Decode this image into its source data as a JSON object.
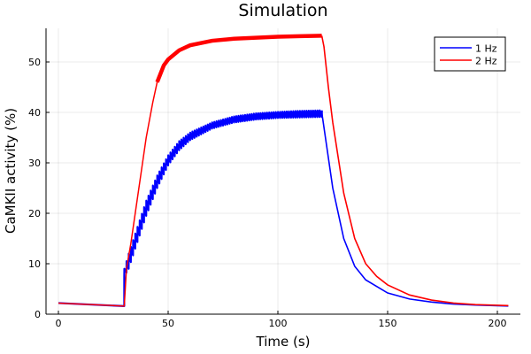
{
  "chart_data": {
    "type": "line",
    "title": "Simulation",
    "xlabel": "Time (s)",
    "ylabel": "CaMKII activity (%)",
    "xlim": [
      -6,
      210
    ],
    "ylim": [
      0,
      57
    ],
    "xticks": [
      0,
      50,
      100,
      150,
      200
    ],
    "yticks": [
      0,
      10,
      20,
      30,
      40,
      50
    ],
    "grid": true,
    "legend_position": "top-right",
    "series": [
      {
        "name": "1 Hz",
        "color": "#0000ff",
        "baseline": {
          "x": [
            0,
            30
          ],
          "y": [
            2.2,
            1.6
          ]
        },
        "stimulus_ripple_hz": 1,
        "stim": {
          "x": [
            30,
            32,
            35,
            40,
            45,
            50,
            55,
            60,
            70,
            80,
            90,
            100,
            110,
            120
          ],
          "y_low": [
            7.5,
            9,
            13,
            19.5,
            25,
            29.5,
            32.5,
            34.5,
            36.8,
            38,
            38.6,
            38.9,
            39,
            39.1
          ],
          "y_high": [
            9,
            12,
            16,
            22.5,
            27.5,
            31.5,
            34.3,
            36,
            38,
            39.2,
            39.8,
            40.1,
            40.3,
            40.4
          ]
        },
        "decay": {
          "x": [
            120,
            122,
            125,
            130,
            135,
            140,
            150,
            160,
            170,
            180,
            190,
            205
          ],
          "y": [
            40,
            34,
            25,
            15,
            9.5,
            6.8,
            4.2,
            3.0,
            2.4,
            2.0,
            1.8,
            1.6
          ]
        }
      },
      {
        "name": "2 Hz",
        "color": "#ff0000",
        "baseline": {
          "x": [
            0,
            30
          ],
          "y": [
            2.2,
            1.6
          ]
        },
        "stim": {
          "x": [
            30,
            31,
            33,
            35,
            38,
            40,
            43,
            45,
            48,
            50,
            55,
            60,
            70,
            80,
            90,
            100,
            110,
            120
          ],
          "y": [
            1.6,
            9,
            14,
            20,
            29,
            35,
            42,
            46,
            49.3,
            50.5,
            52.3,
            53.3,
            54.2,
            54.6,
            54.8,
            55,
            55.1,
            55.2
          ]
        },
        "decay": {
          "x": [
            120,
            121,
            123,
            125,
            130,
            135,
            140,
            145,
            150,
            160,
            170,
            180,
            190,
            205
          ],
          "y": [
            55.2,
            53,
            45,
            38,
            24,
            15,
            10,
            7.5,
            5.8,
            3.8,
            2.8,
            2.2,
            1.9,
            1.7
          ]
        }
      }
    ]
  }
}
